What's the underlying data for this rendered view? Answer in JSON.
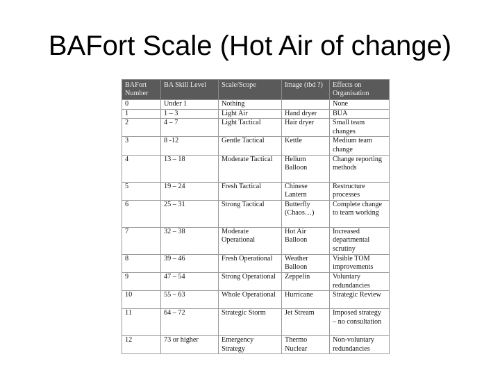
{
  "slide": {
    "title": "BAFort Scale (Hot Air of change)"
  },
  "table": {
    "headers": [
      "BAFort Number",
      "BA Skill Level",
      "Scale/Scope",
      "Image (tbd ?)",
      "Effects on Organisation"
    ],
    "rows": [
      [
        "0",
        "Under 1",
        "Nothing",
        "",
        "None"
      ],
      [
        "1",
        "1 – 3",
        "Light Air",
        "Hand dryer",
        "BUA"
      ],
      [
        "2",
        "4 – 7",
        "Light Tactical",
        "Hair dryer",
        "Small team changes"
      ],
      [
        "3",
        "8 -12",
        "Gentle Tactical",
        "Kettle",
        "Medium team change"
      ],
      [
        "4",
        "13 – 18",
        "Moderate Tactical",
        "Helium Balloon",
        "Change reporting methods"
      ],
      [
        "5",
        "19 – 24",
        "Fresh Tactical",
        "Chinese Lantern",
        "Restructure processes"
      ],
      [
        "6",
        "25 – 31",
        "Strong Tactical",
        "Butterfly (Chaos…)",
        "Complete change to team working"
      ],
      [
        "7",
        "32 – 38",
        "Moderate Operational",
        "Hot Air Balloon",
        "Increased departmental scrutiny"
      ],
      [
        "8",
        "39 – 46",
        "Fresh Operational",
        "Weather Balloon",
        "Visible TOM improvements"
      ],
      [
        "9",
        "47 – 54",
        "Strong Operational",
        "Zeppelin",
        "Voluntary redundancies"
      ],
      [
        "10",
        "55 – 63",
        "Whole Operational",
        "Hurricane",
        "Strategic Review"
      ],
      [
        "11",
        "64 – 72",
        "Strategic Storm",
        "Jet Stream",
        "Imposed strategy – no consultation"
      ],
      [
        "12",
        "73 or higher",
        "Emergency Strategy",
        "Thermo Nuclear",
        "Non-voluntary redundancies"
      ]
    ]
  },
  "colors": {
    "header_bg": "#5a5a5a",
    "header_text": "#f0f0f0",
    "border": "#9a9a9a"
  }
}
